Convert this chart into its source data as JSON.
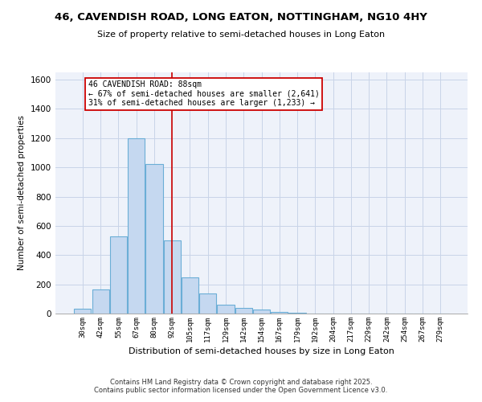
{
  "title_line1": "46, CAVENDISH ROAD, LONG EATON, NOTTINGHAM, NG10 4HY",
  "title_line2": "Size of property relative to semi-detached houses in Long Eaton",
  "categories": [
    "30sqm",
    "42sqm",
    "55sqm",
    "67sqm",
    "80sqm",
    "92sqm",
    "105sqm",
    "117sqm",
    "129sqm",
    "142sqm",
    "154sqm",
    "167sqm",
    "179sqm",
    "192sqm",
    "204sqm",
    "217sqm",
    "229sqm",
    "242sqm",
    "254sqm",
    "267sqm",
    "279sqm"
  ],
  "values": [
    35,
    163,
    527,
    1200,
    1025,
    500,
    245,
    138,
    60,
    37,
    25,
    12,
    8,
    0,
    0,
    0,
    0,
    0,
    0,
    0,
    0
  ],
  "bar_color": "#c5d8f0",
  "bar_edge_color": "#6baed6",
  "vline_pos": 4.97,
  "vline_color": "#cc0000",
  "annotation_title": "46 CAVENDISH ROAD: 88sqm",
  "annotation_line2": "← 67% of semi-detached houses are smaller (2,641)",
  "annotation_line3": "31% of semi-detached houses are larger (1,233) →",
  "annotation_box_color": "#cc0000",
  "xlabel": "Distribution of semi-detached houses by size in Long Eaton",
  "ylabel": "Number of semi-detached properties",
  "ylim": [
    0,
    1650
  ],
  "yticks": [
    0,
    200,
    400,
    600,
    800,
    1000,
    1200,
    1400,
    1600
  ],
  "grid_color": "#c8d4e8",
  "bg_color": "#eef2fa",
  "footer_line1": "Contains HM Land Registry data © Crown copyright and database right 2025.",
  "footer_line2": "Contains public sector information licensed under the Open Government Licence v3.0."
}
